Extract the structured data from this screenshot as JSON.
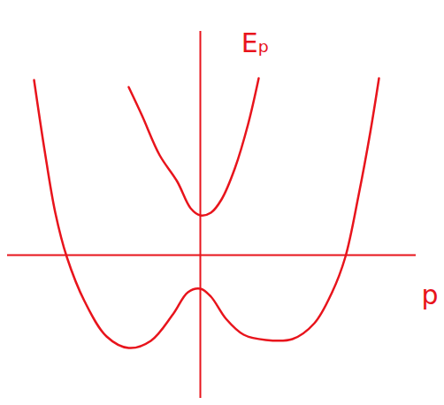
{
  "chart_data": {
    "type": "line",
    "x_label": "p",
    "y_label": "Eₚ",
    "xlim": [
      -2.18,
      2.44
    ],
    "ylim": [
      -1.62,
      2.53
    ],
    "xticks": [],
    "yticks": [],
    "tick_labels": false,
    "grid": false,
    "color": "#e8141c",
    "series": [
      {
        "color": "#e8141c",
        "x": [
          -0.81,
          -0.66,
          -0.46,
          -0.26,
          -0.11,
          0,
          0.12,
          0.24,
          0.39,
          0.54,
          0.66
        ],
        "values": [
          1.9,
          1.58,
          1.13,
          0.83,
          0.53,
          0.45,
          0.48,
          0.63,
          0.98,
          1.48,
          2.0
        ]
      },
      {
        "color": "#e8141c",
        "x": [
          -1.88,
          -1.76,
          -1.64,
          -1.51,
          -1.31,
          -1.06,
          -0.81,
          -0.56,
          -0.31,
          -0.14,
          0,
          0.12,
          0.29,
          0.49,
          0.74,
          1.04,
          1.29,
          1.49,
          1.64,
          1.79,
          1.92,
          2.02
        ],
        "values": [
          1.98,
          1.18,
          0.48,
          -0.02,
          -0.52,
          -0.92,
          -1.05,
          -0.97,
          -0.67,
          -0.42,
          -0.38,
          -0.47,
          -0.72,
          -0.9,
          -0.96,
          -0.95,
          -0.77,
          -0.42,
          -0.02,
          0.68,
          1.38,
          2.0
        ]
      }
    ]
  }
}
